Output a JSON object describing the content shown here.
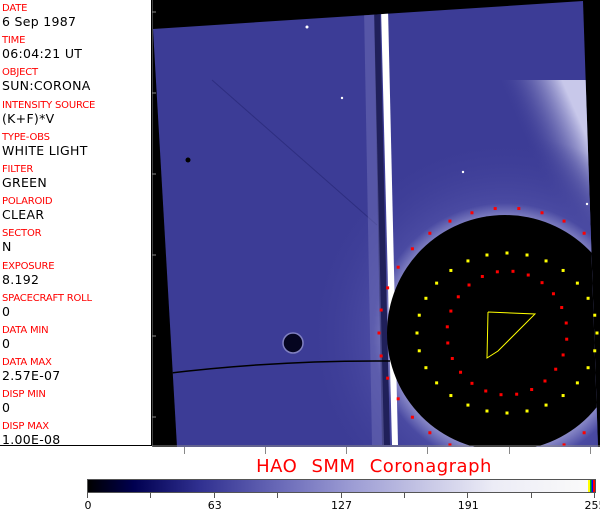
{
  "header_fields": [
    {
      "label": "DATE",
      "value": "6 Sep 1987"
    },
    {
      "label": "TIME",
      "value": "06:04:21 UT"
    },
    {
      "label": "OBJECT",
      "value": "SUN:CORONA"
    },
    {
      "label": "INTENSITY SOURCE",
      "value": "(K+F)*V"
    },
    {
      "label": "TYPE-OBS",
      "value": "WHITE LIGHT"
    },
    {
      "label": "FILTER",
      "value": "GREEN"
    },
    {
      "label": "POLAROID",
      "value": "CLEAR"
    },
    {
      "label": "SECTOR",
      "value": "N"
    },
    {
      "label": "EXPOSURE",
      "value": "8.192"
    },
    {
      "label": "SPACECRAFT ROLL",
      "value": "0"
    },
    {
      "label": "DATA MIN",
      "value": "0"
    },
    {
      "label": "DATA MAX",
      "value": "2.57E-07"
    },
    {
      "label": "DISP MIN",
      "value": "0"
    },
    {
      "label": "DISP MAX",
      "value": "1.00E-08"
    }
  ],
  "title": "HAO SMM Coronagraph",
  "colorbar": {
    "ticks": [
      "0",
      "63",
      "127",
      "191",
      "255"
    ],
    "min": 0,
    "max": 255
  },
  "colors": {
    "label": "#ff0000",
    "image_blue": "#3c3c96",
    "overlay_red": "#ff0000",
    "overlay_yellow": "#ffff00"
  }
}
